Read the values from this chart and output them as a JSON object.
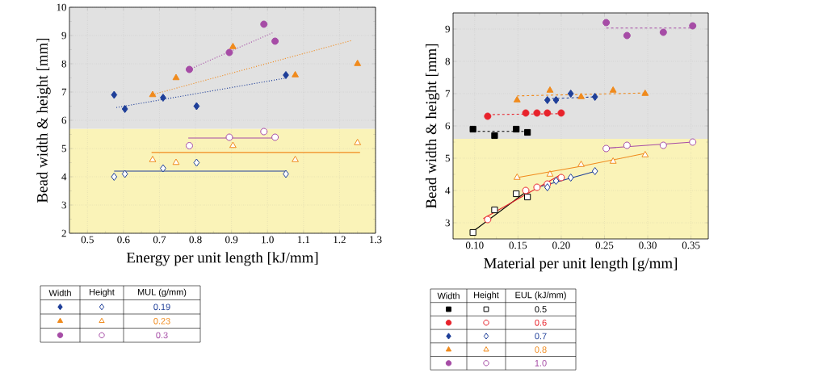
{
  "chart_data": [
    {
      "type": "scatter",
      "xlabel": "Energy per unit length [kJ/mm]",
      "ylabel": "Bead width & height [mm]",
      "xlim": [
        0.45,
        1.3
      ],
      "ylim": [
        2,
        10
      ],
      "xticks": [
        0.5,
        0.6,
        0.7,
        0.8,
        0.9,
        {
          "value": 1.0,
          "label": "1.0"
        },
        1.1,
        1.2,
        1.3
      ],
      "yticks": [
        2,
        3,
        4,
        5,
        6,
        7,
        8,
        9,
        10
      ],
      "grid": true,
      "legend": "bottom",
      "legend_title": "MUL (g/mm)",
      "annotations": [
        "Width",
        "Height"
      ],
      "bands": [
        {
          "axis": "y",
          "from": 2,
          "to": 5.7,
          "color": "#faf3b8"
        },
        {
          "axis": "y",
          "from": 5.7,
          "to": 10,
          "color": "#e1e1e1"
        }
      ],
      "series": [
        {
          "name": "0.19",
          "color": "#1f3f99",
          "marker": "diamond",
          "x": [
            0.574,
            0.604,
            0.71,
            0.803,
            1.051
          ],
          "values": [
            6.9,
            6.4,
            6.8,
            6.5,
            7.6
          ]
        },
        {
          "name": "0.23",
          "color": "#f08a1c",
          "marker": "triangle",
          "x": [
            0.681,
            0.746,
            0.904,
            1.077,
            1.25
          ],
          "values": [
            6.9,
            7.5,
            8.6,
            7.6,
            8.0
          ]
        },
        {
          "name": "0.3",
          "color": "#a64ca6",
          "marker": "circle",
          "x": [
            0.783,
            0.894,
            0.99,
            1.021
          ],
          "values": [
            7.8,
            8.4,
            9.4,
            8.8
          ]
        },
        {
          "color": "#1f3f99",
          "marker": "diamond",
          "x": [
            0.574,
            0.604,
            0.71,
            0.803,
            1.051
          ],
          "values": [
            4.0,
            4.1,
            4.3,
            4.5,
            4.1
          ]
        },
        {
          "color": "#f08a1c",
          "marker": "triangle",
          "x": [
            0.681,
            0.746,
            0.904,
            1.077,
            1.25
          ],
          "values": [
            4.6,
            4.5,
            5.1,
            4.6,
            5.2
          ]
        },
        {
          "color": "#a64ca6",
          "marker": "circle",
          "x": [
            0.783,
            0.894,
            0.99,
            1.021
          ],
          "values": [
            5.1,
            5.4,
            5.6,
            5.4
          ]
        },
        {
          "type": "line",
          "line_style": "dotted",
          "color": "#1f3f99",
          "x": [
            0.58,
            1.049
          ],
          "values": [
            6.45,
            7.49
          ]
        },
        {
          "type": "line",
          "line_style": "dotted",
          "color": "#f08a1c",
          "x": [
            0.687,
            1.235
          ],
          "values": [
            6.93,
            8.83
          ]
        },
        {
          "type": "line",
          "line_style": "dotted",
          "color": "#a64ca6",
          "x": [
            0.783,
            1.018
          ],
          "values": [
            7.8,
            9.12
          ]
        },
        {
          "type": "line",
          "line_style": "solid",
          "color": "#1f3f99",
          "x": [
            0.574,
            1.05
          ],
          "values": [
            4.2,
            4.2
          ]
        },
        {
          "type": "line",
          "line_style": "solid",
          "color": "#f08a1c",
          "x": [
            0.678,
            1.257
          ],
          "values": [
            4.86,
            4.86
          ]
        },
        {
          "type": "line",
          "line_style": "solid",
          "color": "#a64ca6",
          "x": [
            0.78,
            1.02
          ],
          "values": [
            5.37,
            5.37
          ]
        }
      ]
    },
    {
      "type": "scatter",
      "xlabel": "Material per unit length [g/mm]",
      "ylabel": "Bead width & height [mm]",
      "xlim": [
        0.075,
        0.37
      ],
      "ylim": [
        2.5,
        9.5
      ],
      "xticks": [
        {
          "value": 0.1,
          "label": "0.10"
        },
        0.15,
        {
          "value": 0.2,
          "label": "0.20"
        },
        0.25,
        {
          "value": 0.3,
          "label": "0.30"
        },
        0.35
      ],
      "yticks": [
        3,
        4,
        5,
        6,
        7,
        8,
        9
      ],
      "grid": true,
      "legend": "bottom",
      "legend_title": "EUL (kJ/mm)",
      "annotations": [
        "Width",
        "Height"
      ],
      "bands": [
        {
          "axis": "y",
          "from": 2.5,
          "to": 5.6,
          "color": "#faf3b8"
        },
        {
          "axis": "y",
          "from": 5.6,
          "to": 9.5,
          "color": "#e1e1e1"
        }
      ],
      "series": [
        {
          "name": "0.5",
          "color": "#000000",
          "marker": "square",
          "x": [
            0.098,
            0.123,
            0.148,
            0.161
          ],
          "values": [
            5.9,
            5.7,
            5.9,
            5.8
          ]
        },
        {
          "name": "0.6",
          "color": "#e8222b",
          "marker": "circle",
          "x": [
            0.115,
            0.159,
            0.172,
            0.184,
            0.2
          ],
          "values": [
            6.3,
            6.4,
            6.4,
            6.4,
            6.4
          ]
        },
        {
          "name": "0.7",
          "color": "#1f3f99",
          "marker": "diamond",
          "x": [
            0.184,
            0.194,
            0.211,
            0.239
          ],
          "values": [
            6.8,
            6.8,
            7.0,
            6.9
          ]
        },
        {
          "name": "0.8",
          "color": "#f08a1c",
          "marker": "triangle",
          "x": [
            0.149,
            0.187,
            0.223,
            0.26,
            0.297
          ],
          "values": [
            6.8,
            7.1,
            6.9,
            7.1,
            7.0
          ]
        },
        {
          "name": "1.0",
          "color": "#a64ca6",
          "marker": "circle",
          "x": [
            0.252,
            0.276,
            0.318,
            0.352
          ],
          "values": [
            9.2,
            8.8,
            8.9,
            9.1
          ]
        },
        {
          "color": "#000000",
          "marker": "square",
          "x": [
            0.098,
            0.123,
            0.148,
            0.161
          ],
          "values": [
            2.7,
            3.4,
            3.9,
            3.8
          ]
        },
        {
          "color": "#e8222b",
          "marker": "circle",
          "x": [
            0.115,
            0.159,
            0.172,
            0.184,
            0.2
          ],
          "values": [
            3.1,
            4.0,
            4.1,
            4.2,
            4.4
          ]
        },
        {
          "color": "#1f3f99",
          "marker": "diamond",
          "x": [
            0.184,
            0.194,
            0.211,
            0.239
          ],
          "values": [
            4.1,
            4.3,
            4.4,
            4.6
          ]
        },
        {
          "color": "#f08a1c",
          "marker": "triangle",
          "x": [
            0.149,
            0.187,
            0.223,
            0.26,
            0.297
          ],
          "values": [
            4.4,
            4.5,
            4.8,
            4.9,
            5.1
          ]
        },
        {
          "color": "#a64ca6",
          "marker": "circle",
          "x": [
            0.252,
            0.276,
            0.318,
            0.352
          ],
          "values": [
            5.3,
            5.4,
            5.4,
            5.5
          ]
        },
        {
          "type": "line",
          "line_style": "dashed",
          "color": "#000000",
          "x": [
            0.098,
            0.161
          ],
          "values": [
            5.83,
            5.83
          ]
        },
        {
          "type": "line",
          "line_style": "dashed",
          "color": "#e8222b",
          "x": [
            0.115,
            0.2
          ],
          "values": [
            6.35,
            6.38
          ]
        },
        {
          "type": "line",
          "line_style": "dashed",
          "color": "#1f3f99",
          "x": [
            0.184,
            0.239
          ],
          "values": [
            6.84,
            6.9
          ]
        },
        {
          "type": "line",
          "line_style": "dashed",
          "color": "#f08a1c",
          "x": [
            0.149,
            0.297
          ],
          "values": [
            6.93,
            7.02
          ]
        },
        {
          "type": "line",
          "line_style": "dashed",
          "color": "#a64ca6",
          "x": [
            0.252,
            0.352
          ],
          "values": [
            9.03,
            9.03
          ]
        },
        {
          "type": "line",
          "line_style": "solid",
          "color": "#000000",
          "x": [
            0.098,
            0.158
          ],
          "values": [
            2.73,
            3.93
          ]
        },
        {
          "type": "line",
          "line_style": "solid",
          "color": "#e8222b",
          "x": [
            0.11,
            0.198
          ],
          "values": [
            3.13,
            4.47
          ]
        },
        {
          "type": "line",
          "line_style": "solid",
          "color": "#1f3f99",
          "x": [
            0.177,
            0.24
          ],
          "values": [
            4.13,
            4.6
          ]
        },
        {
          "type": "line",
          "line_style": "solid",
          "color": "#f08a1c",
          "x": [
            0.149,
            0.223,
            0.297
          ],
          "values": [
            4.4,
            4.75,
            5.15
          ]
        },
        {
          "type": "line",
          "line_style": "solid",
          "color": "#a64ca6",
          "x": [
            0.252,
            0.352
          ],
          "values": [
            5.31,
            5.5
          ]
        }
      ]
    }
  ]
}
